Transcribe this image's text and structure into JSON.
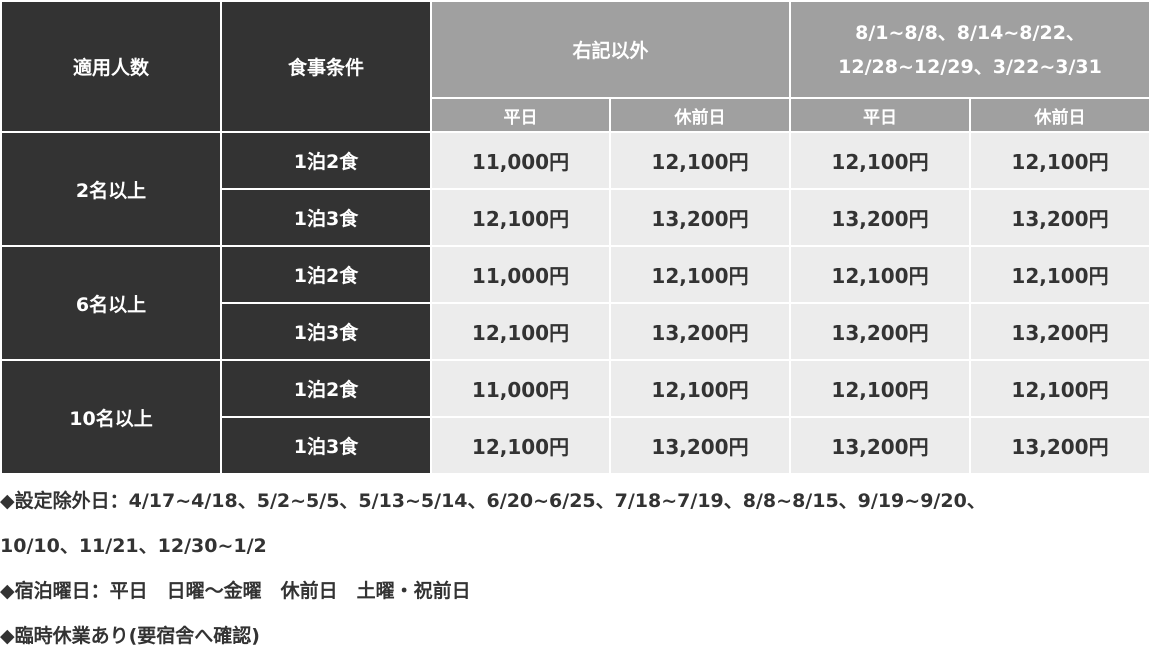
{
  "table": {
    "headers": {
      "people": "適用人数",
      "meal": "食事条件",
      "period1": "右記以外",
      "period2_line1": "8/1~8/8、8/14~8/22、",
      "period2_line2": "12/28~12/29、3/22~3/31",
      "weekday": "平日",
      "preholiday": "休前日"
    },
    "groups": [
      {
        "people": "2名以上",
        "rows": [
          {
            "meal": "1泊2食",
            "prices": [
              "11,000円",
              "12,100円",
              "12,100円",
              "12,100円"
            ]
          },
          {
            "meal": "1泊3食",
            "prices": [
              "12,100円",
              "13,200円",
              "13,200円",
              "13,200円"
            ]
          }
        ]
      },
      {
        "people": "6名以上",
        "rows": [
          {
            "meal": "1泊2食",
            "prices": [
              "11,000円",
              "12,100円",
              "12,100円",
              "12,100円"
            ]
          },
          {
            "meal": "1泊3食",
            "prices": [
              "12,100円",
              "13,200円",
              "13,200円",
              "13,200円"
            ]
          }
        ]
      },
      {
        "people": "10名以上",
        "rows": [
          {
            "meal": "1泊2食",
            "prices": [
              "11,000円",
              "12,100円",
              "12,100円",
              "12,100円"
            ]
          },
          {
            "meal": "1泊3食",
            "prices": [
              "12,100円",
              "13,200円",
              "13,200円",
              "13,200円"
            ]
          }
        ]
      }
    ]
  },
  "notes": [
    "◆設定除外日：4/17~4/18、5/2~5/5、5/13~5/14、6/20~6/25、7/18~7/19、8/8~8/15、9/19~9/20、",
    "10/10、11/21、12/30~1/2",
    "◆宿泊曜日：平日　日曜〜金曜　休前日　土曜・祝前日",
    "◆臨時休業あり(要宿舎へ確認)"
  ]
}
